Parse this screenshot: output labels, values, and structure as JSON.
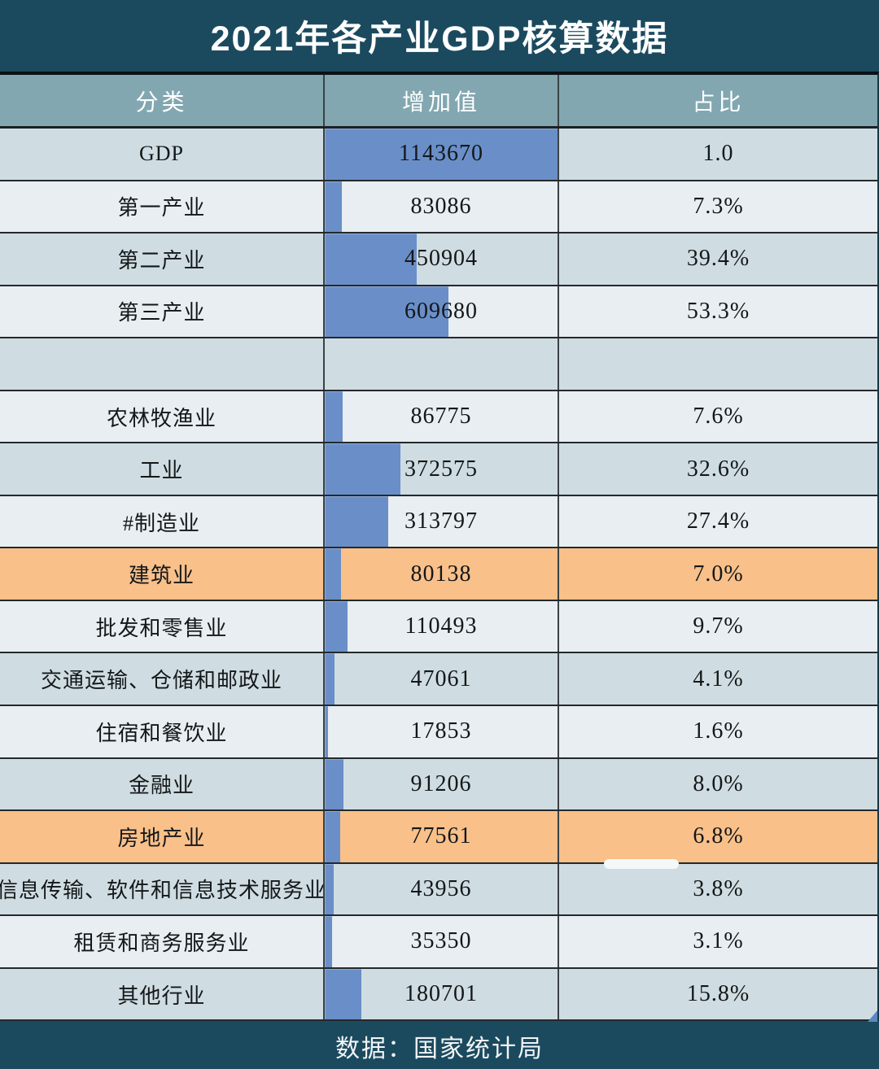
{
  "title": "2021年各产业GDP核算数据",
  "footer": {
    "source": "数据：国家统计局"
  },
  "table": {
    "headers": [
      "分类",
      "增加值",
      "占比"
    ],
    "max_value": 1143670,
    "rows": [
      {
        "category": "GDP",
        "value": "1143670",
        "value_num": 1143670,
        "share": "1.0",
        "style": "dark",
        "empty": false
      },
      {
        "category": "第一产业",
        "value": "83086",
        "value_num": 83086,
        "share": "7.3%",
        "style": "light",
        "empty": false
      },
      {
        "category": "第二产业",
        "value": "450904",
        "value_num": 450904,
        "share": "39.4%",
        "style": "dark",
        "empty": false
      },
      {
        "category": "第三产业",
        "value": "609680",
        "value_num": 609680,
        "share": "53.3%",
        "style": "light",
        "empty": false
      },
      {
        "category": "",
        "value": "",
        "value_num": 0,
        "share": "",
        "style": "dark",
        "empty": true
      },
      {
        "category": "农林牧渔业",
        "value": "86775",
        "value_num": 86775,
        "share": "7.6%",
        "style": "light",
        "empty": false
      },
      {
        "category": "工业",
        "value": "372575",
        "value_num": 372575,
        "share": "32.6%",
        "style": "dark",
        "empty": false
      },
      {
        "category": "#制造业",
        "value": "313797",
        "value_num": 313797,
        "share": "27.4%",
        "style": "light",
        "empty": false
      },
      {
        "category": "建筑业",
        "value": "80138",
        "value_num": 80138,
        "share": "7.0%",
        "style": "orange",
        "empty": false
      },
      {
        "category": "批发和零售业",
        "value": "110493",
        "value_num": 110493,
        "share": "9.7%",
        "style": "light",
        "empty": false
      },
      {
        "category": "交通运输、仓储和邮政业",
        "value": "47061",
        "value_num": 47061,
        "share": "4.1%",
        "style": "dark",
        "empty": false
      },
      {
        "category": "住宿和餐饮业",
        "value": "17853",
        "value_num": 17853,
        "share": "1.6%",
        "style": "light",
        "empty": false
      },
      {
        "category": "金融业",
        "value": "91206",
        "value_num": 91206,
        "share": "8.0%",
        "style": "dark",
        "empty": false
      },
      {
        "category": "房地产业",
        "value": "77561",
        "value_num": 77561,
        "share": "6.8%",
        "style": "orange",
        "empty": false
      },
      {
        "category": "信息传输、软件和信息技术服务业",
        "value": "43956",
        "value_num": 43956,
        "share": "3.8%",
        "style": "dark",
        "empty": false
      },
      {
        "category": "租赁和商务服务业",
        "value": "35350",
        "value_num": 35350,
        "share": "3.1%",
        "style": "light",
        "empty": false
      },
      {
        "category": "其他行业",
        "value": "180701",
        "value_num": 180701,
        "share": "15.8%",
        "style": "dark",
        "empty": false
      }
    ]
  },
  "colors": {
    "band_teal": "#1b4a5f",
    "header_row": "#82a7b1",
    "row_light": "#e8eef1",
    "row_dark": "#cfdde2",
    "row_highlight_orange": "#f9c08a",
    "bar_blue": "#6a8fc8",
    "text_dark": "#141719",
    "text_white": "#ffffff"
  },
  "chart_data": {
    "type": "table",
    "title": "2021年各产业GDP核算数据",
    "columns": [
      "分类",
      "增加值",
      "占比"
    ],
    "bar_column": "增加值",
    "bar_max": 1143670,
    "orientation": "horizontal",
    "highlighted_rows": [
      "建筑业",
      "房地产业"
    ],
    "rows": [
      [
        "GDP",
        1143670,
        "1.0"
      ],
      [
        "第一产业",
        83086,
        "7.3%"
      ],
      [
        "第二产业",
        450904,
        "39.4%"
      ],
      [
        "第三产业",
        609680,
        "53.3%"
      ],
      [
        "农林牧渔业",
        86775,
        "7.6%"
      ],
      [
        "工业",
        372575,
        "32.6%"
      ],
      [
        "#制造业",
        313797,
        "27.4%"
      ],
      [
        "建筑业",
        80138,
        "7.0%"
      ],
      [
        "批发和零售业",
        110493,
        "9.7%"
      ],
      [
        "交通运输、仓储和邮政业",
        47061,
        "4.1%"
      ],
      [
        "住宿和餐饮业",
        17853,
        "1.6%"
      ],
      [
        "金融业",
        91206,
        "8.0%"
      ],
      [
        "房地产业",
        77561,
        "6.8%"
      ],
      [
        "信息传输、软件和信息技术服务业",
        43956,
        "3.8%"
      ],
      [
        "租赁和商务服务业",
        35350,
        "3.1%"
      ],
      [
        "其他行业",
        180701,
        "15.8%"
      ]
    ],
    "source": "数据：国家统计局"
  }
}
